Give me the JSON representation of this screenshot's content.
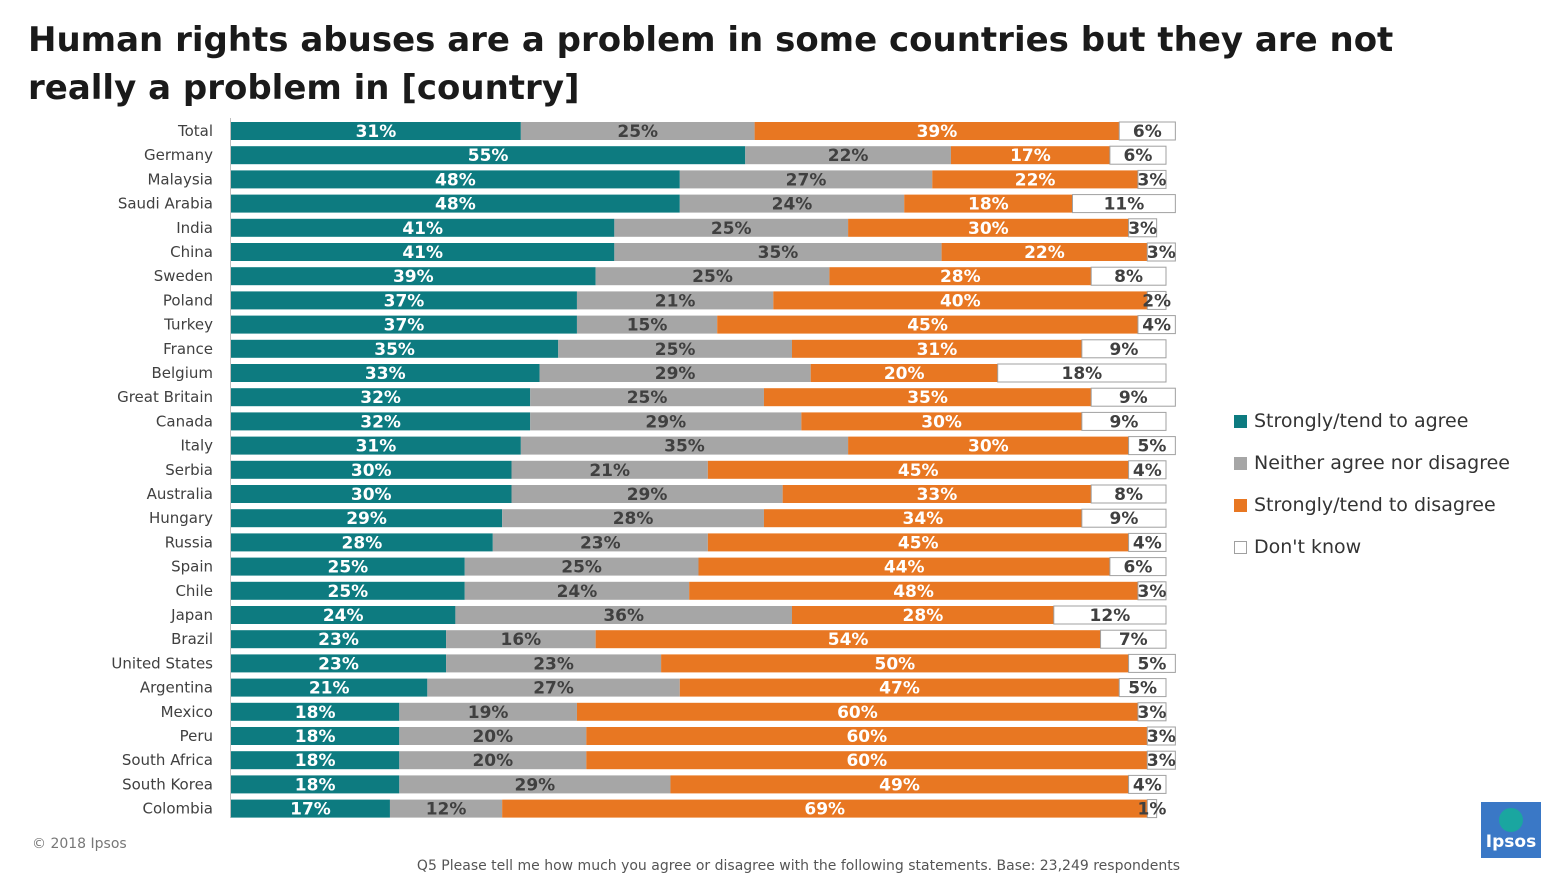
{
  "title": "Human rights abuses are a problem in some countries but they are not really a problem in [country]",
  "colors": {
    "agree": "#0d7b80",
    "neither": "#a6a6a6",
    "disagree": "#e87722",
    "dont_know": "#ffffff",
    "dont_know_border": "#a0a0a0",
    "label_light": "#ffffff",
    "label_dark": "#404040"
  },
  "legend": [
    {
      "label": "Strongly/tend to agree",
      "color": "#0d7b80"
    },
    {
      "label": "Neither agree nor disagree",
      "color": "#a6a6a6"
    },
    {
      "label": "Strongly/tend to disagree",
      "color": "#e87722"
    },
    {
      "label": "Don't know",
      "color": "#ffffff"
    }
  ],
  "chart_data": {
    "type": "bar",
    "orientation": "horizontal",
    "stacked": true,
    "unit": "%",
    "categories": [
      "Total",
      "Germany",
      "Malaysia",
      "Saudi Arabia",
      "India",
      "China",
      "Sweden",
      "Poland",
      "Turkey",
      "France",
      "Belgium",
      "Great Britain",
      "Canada",
      "Italy",
      "Serbia",
      "Australia",
      "Hungary",
      "Russia",
      "Spain",
      "Chile",
      "Japan",
      "Brazil",
      "United States",
      "Argentina",
      "Mexico",
      "Peru",
      "South Africa",
      "South Korea",
      "Colombia"
    ],
    "series": [
      {
        "name": "Strongly/tend to agree",
        "values": [
          31,
          55,
          48,
          48,
          41,
          41,
          39,
          37,
          37,
          35,
          33,
          32,
          32,
          31,
          30,
          30,
          29,
          28,
          25,
          25,
          24,
          23,
          23,
          21,
          18,
          18,
          18,
          18,
          17
        ]
      },
      {
        "name": "Neither agree nor disagree",
        "values": [
          25,
          22,
          27,
          24,
          25,
          35,
          25,
          21,
          15,
          25,
          29,
          25,
          29,
          35,
          21,
          29,
          28,
          23,
          25,
          24,
          36,
          16,
          23,
          27,
          19,
          20,
          20,
          29,
          12
        ]
      },
      {
        "name": "Strongly/tend to disagree",
        "values": [
          39,
          17,
          22,
          18,
          30,
          22,
          28,
          40,
          45,
          31,
          20,
          35,
          30,
          30,
          45,
          33,
          34,
          45,
          44,
          48,
          28,
          54,
          50,
          47,
          60,
          60,
          60,
          49,
          69
        ]
      },
      {
        "name": "Don't know",
        "values": [
          6,
          6,
          3,
          11,
          3,
          3,
          8,
          2,
          4,
          9,
          18,
          9,
          9,
          5,
          4,
          8,
          9,
          4,
          6,
          3,
          12,
          7,
          5,
          5,
          3,
          3,
          3,
          4,
          1
        ]
      }
    ],
    "legend_position": "right"
  },
  "footer": {
    "copyright": "© 2018 Ipsos",
    "note": "Q5 Please tell me how much you agree or disagree with the following statements. Base: 23,249 respondents",
    "logo_text": "Ipsos"
  }
}
